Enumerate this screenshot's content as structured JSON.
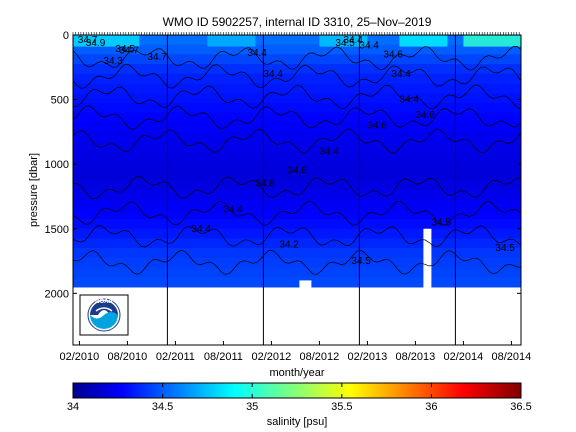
{
  "chart_data": {
    "type": "heatmap",
    "title": "WMO ID 5902257, internal ID 3310, 25–Nov–2019",
    "xlabel": "month/year",
    "ylabel": "pressure [dbar]",
    "y_axis_reversed": true,
    "ylim": [
      0,
      2400
    ],
    "y_ticks": [
      0,
      500,
      1000,
      1500,
      2000
    ],
    "y_tick_labels": [
      "0",
      "500",
      "1000",
      "1500",
      "2000"
    ],
    "x_tick_labels": [
      "02/2010",
      "08/2010",
      "02/2011",
      "08/2011",
      "02/2012",
      "08/2012",
      "02/2013",
      "08/2013",
      "02/2014",
      "08/2014"
    ],
    "x_range_months_from_2010_02": [
      -0.8,
      55.2
    ],
    "year_boundaries": [
      "2011",
      "2012",
      "2013",
      "2014"
    ],
    "colorbar": {
      "label": "salinity [psu]",
      "range": [
        34,
        36.5
      ],
      "tick_labels": [
        "34",
        "34.5",
        "35",
        "35.5",
        "36",
        "36.5"
      ],
      "colormap": "jet"
    },
    "salinity_profile": [
      {
        "pressure": 0,
        "salinity": 34.6
      },
      {
        "pressure": 100,
        "salinity": 34.55
      },
      {
        "pressure": 300,
        "salinity": 34.4
      },
      {
        "pressure": 500,
        "salinity": 34.35
      },
      {
        "pressure": 700,
        "salinity": 34.3
      },
      {
        "pressure": 900,
        "salinity": 34.25
      },
      {
        "pressure": 1100,
        "salinity": 34.22
      },
      {
        "pressure": 1300,
        "salinity": 34.28
      },
      {
        "pressure": 1500,
        "salinity": 34.35
      },
      {
        "pressure": 1700,
        "salinity": 34.45
      },
      {
        "pressure": 1950,
        "salinity": 34.5
      }
    ],
    "contour_labels": [
      "34.7",
      "34.9",
      "34.3",
      "34.7",
      "34.7",
      "34.5",
      "34.4",
      "34.4",
      "34.5",
      "34.4",
      "34.4",
      "34.6",
      "34.4",
      "34.4",
      "34.6",
      "34.6",
      "34.4",
      "34.6",
      "34.8",
      "34.4",
      "34.4",
      "34.2",
      "34.5",
      "34.5",
      "34.5"
    ]
  },
  "logo": {
    "text": "NOAA"
  },
  "colors": {
    "deep_blue": "#1414d2",
    "mid_blue": "#0a50ff",
    "light_blue": "#1e78ff",
    "surface_cyan": "#28e0d0",
    "surface_green": "#8cf060"
  }
}
